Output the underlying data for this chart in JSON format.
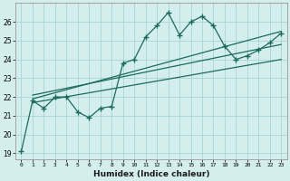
{
  "xlabel": "Humidex (Indice chaleur)",
  "background_color": "#d4eeee",
  "grid_color": "#aad4d4",
  "line_color": "#1a6b5a",
  "xlim": [
    -0.5,
    23.5
  ],
  "ylim": [
    18.7,
    27.0
  ],
  "yticks": [
    19,
    20,
    21,
    22,
    23,
    24,
    25,
    26
  ],
  "xticks": [
    0,
    1,
    2,
    3,
    4,
    5,
    6,
    7,
    8,
    9,
    10,
    11,
    12,
    13,
    14,
    15,
    16,
    17,
    18,
    19,
    20,
    21,
    22,
    23
  ],
  "main_line_x": [
    0,
    1,
    2,
    3,
    4,
    5,
    6,
    7,
    8,
    9,
    10,
    11,
    12,
    13,
    14,
    15,
    16,
    17,
    18,
    19,
    20,
    21,
    22,
    23
  ],
  "main_line_y": [
    19.1,
    21.8,
    21.4,
    22.0,
    22.0,
    21.2,
    20.9,
    21.4,
    21.5,
    23.8,
    24.0,
    25.2,
    25.8,
    26.5,
    25.3,
    26.0,
    26.3,
    25.8,
    24.7,
    24.0,
    24.2,
    24.5,
    24.9,
    25.4
  ],
  "reg_line1": {
    "x": [
      1,
      23
    ],
    "y": [
      21.9,
      25.5
    ]
  },
  "reg_line2": {
    "x": [
      1,
      23
    ],
    "y": [
      21.7,
      24.0
    ]
  },
  "reg_line3": {
    "x": [
      1,
      23
    ],
    "y": [
      22.1,
      24.8
    ]
  }
}
